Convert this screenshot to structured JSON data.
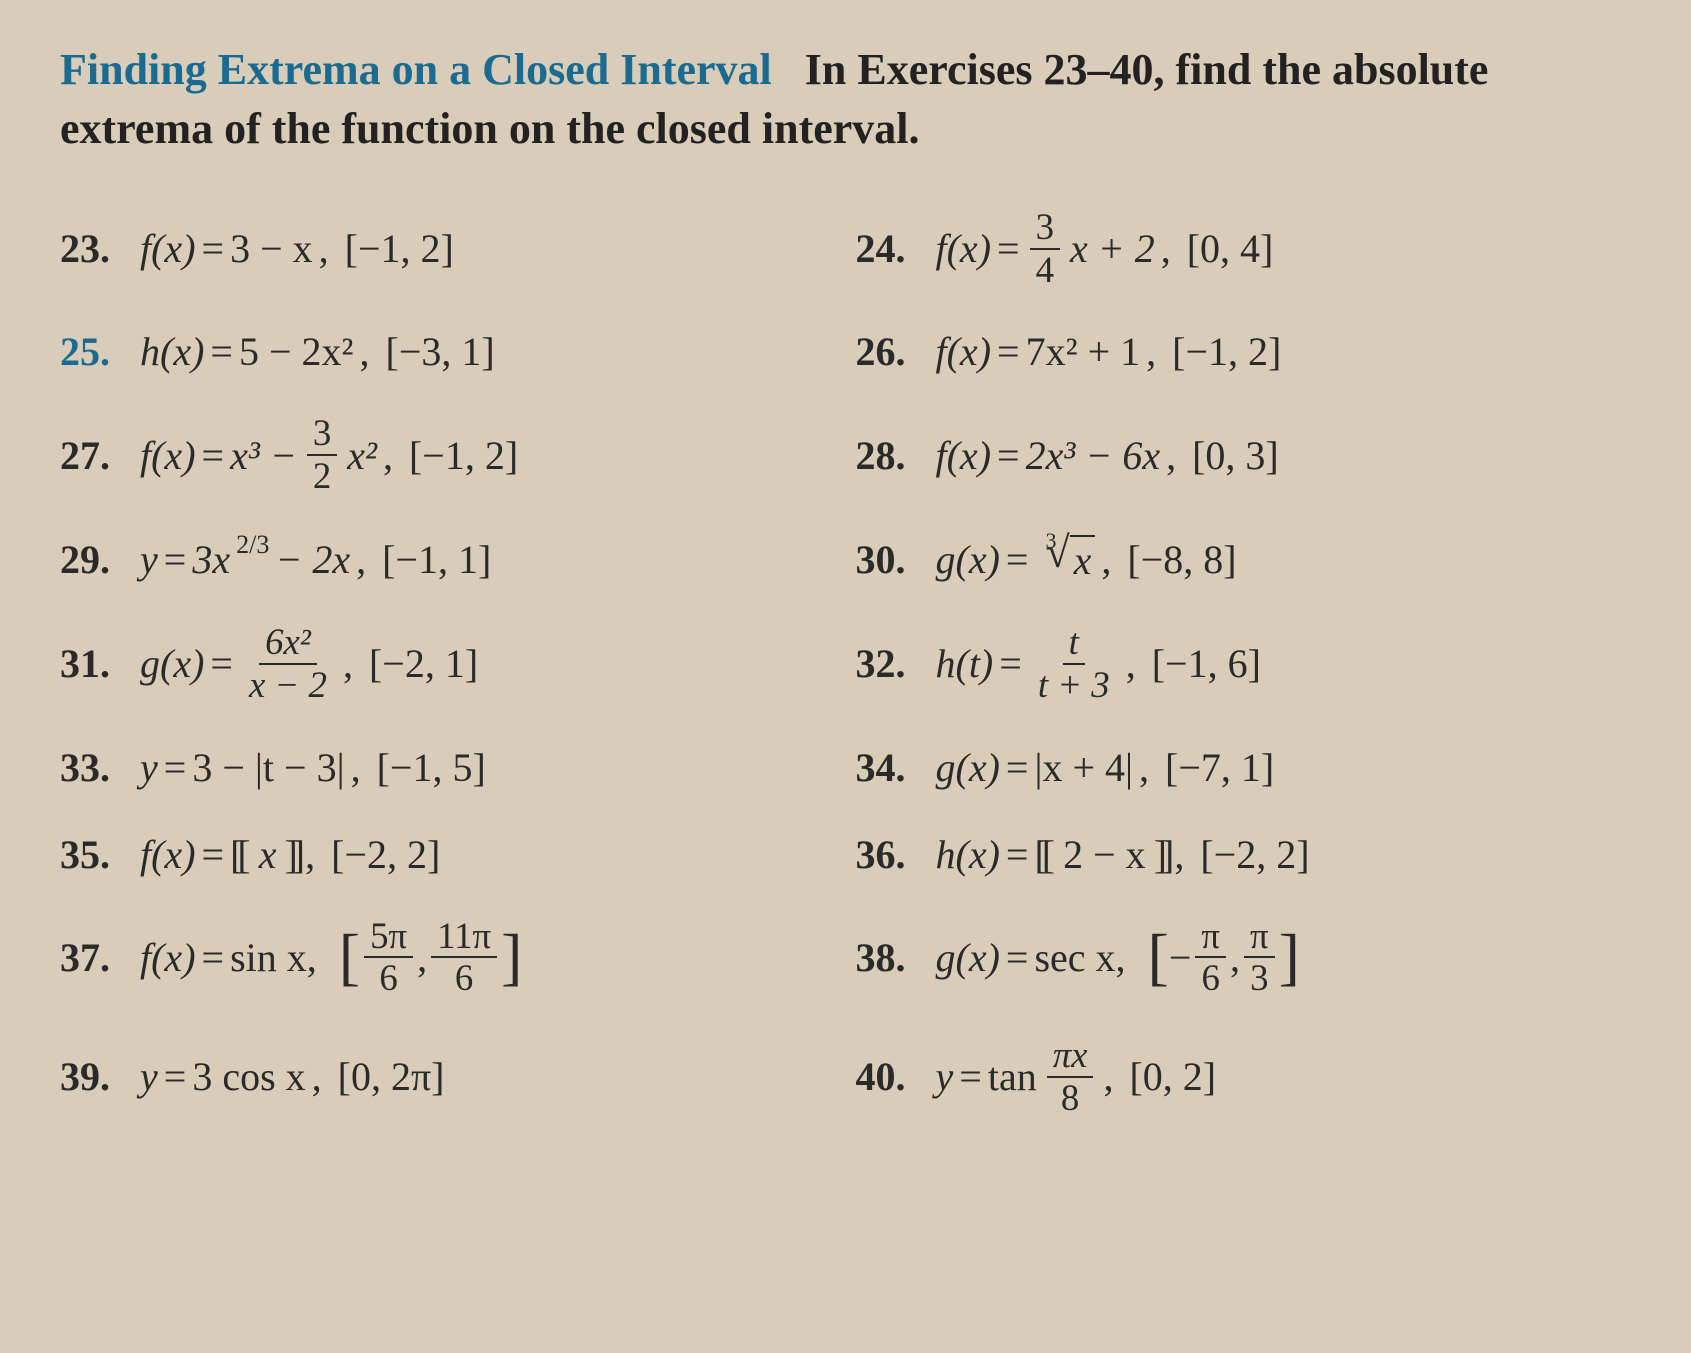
{
  "page": {
    "background_color": "#d9cdb9",
    "text_color": "#2a2a2a",
    "accent_color": "#1a6b8f",
    "font_family": "Times New Roman",
    "heading_fontsize": 44,
    "body_fontsize": 40
  },
  "heading": {
    "title": "Finding Extrema on a Closed Interval",
    "lead": "In Exercises 23–40, find the absolute extrema of the function on the closed interval."
  },
  "problems": [
    {
      "n": "23.",
      "lhs": "f(x)",
      "rhs_plain": "3 − x",
      "interval": "[−1, 2]",
      "color": "black"
    },
    {
      "n": "24.",
      "lhs": "f(x)",
      "frac_num": "3",
      "frac_den": "4",
      "rhs_tail": "x + 2",
      "interval": "[0, 4]",
      "color": "black"
    },
    {
      "n": "25.",
      "lhs": "h(x)",
      "rhs_plain": "5 − 2x²",
      "interval": "[−3, 1]",
      "color": "blue"
    },
    {
      "n": "26.",
      "lhs": "f(x)",
      "rhs_plain": "7x² + 1",
      "interval": "[−1, 2]",
      "color": "black"
    },
    {
      "n": "27.",
      "lhs": "f(x)",
      "rhs_head": "x³ −",
      "frac_num": "3",
      "frac_den": "2",
      "rhs_tail": "x²",
      "interval": "[−1, 2]",
      "color": "black"
    },
    {
      "n": "28.",
      "lhs": "f(x)",
      "rhs_plain": "2x³ − 6x",
      "interval": "[0, 3]",
      "color": "black"
    },
    {
      "n": "29.",
      "lhs": "y",
      "rhs_head": "3x",
      "sup": "2/3",
      "rhs_tail": " − 2x",
      "interval": "[−1, 1]",
      "color": "black"
    },
    {
      "n": "30.",
      "lhs": "g(x)",
      "root_idx": "3",
      "root_arg": "x",
      "interval": "[−8, 8]",
      "color": "black"
    },
    {
      "n": "31.",
      "lhs": "g(x)",
      "frac_num": "6x²",
      "frac_den": "x − 2",
      "interval": "[−2, 1]",
      "color": "black"
    },
    {
      "n": "32.",
      "lhs": "h(t)",
      "frac_num": "t",
      "frac_den": "t + 3",
      "interval": "[−1, 6]",
      "color": "black"
    },
    {
      "n": "33.",
      "lhs": "y",
      "rhs_plain": "3 − |t − 3|",
      "interval": "[−1, 5]",
      "color": "black"
    },
    {
      "n": "34.",
      "lhs": "g(x)",
      "rhs_plain": "|x + 4|",
      "interval": "[−7, 1]",
      "color": "black"
    },
    {
      "n": "35.",
      "lhs": "f(x)",
      "dbracket_arg": "x",
      "interval": "[−2, 2]",
      "color": "black"
    },
    {
      "n": "36.",
      "lhs": "h(x)",
      "dbracket_arg": "2 − x",
      "interval": "[−2, 2]",
      "color": "black"
    },
    {
      "n": "37.",
      "lhs": "f(x)",
      "rhs_head": "sin x,",
      "big_interval_a_num": "5π",
      "big_interval_a_den": "6",
      "big_interval_b_num": "11π",
      "big_interval_b_den": "6",
      "color": "black"
    },
    {
      "n": "38.",
      "lhs": "g(x)",
      "rhs_head": "sec x,",
      "big_interval_a_num": "π",
      "big_interval_a_den": "6",
      "neg_a": "−",
      "big_interval_b_num": "π",
      "big_interval_b_den": "3",
      "color": "black"
    },
    {
      "n": "39.",
      "lhs": "y",
      "rhs_plain": "3 cos x",
      "interval": "[0, 2π]",
      "color": "black"
    },
    {
      "n": "40.",
      "lhs": "y",
      "rhs_head": "tan ",
      "frac_num": "πx",
      "frac_den": "8",
      "interval": "[0, 2]",
      "color": "black"
    }
  ]
}
